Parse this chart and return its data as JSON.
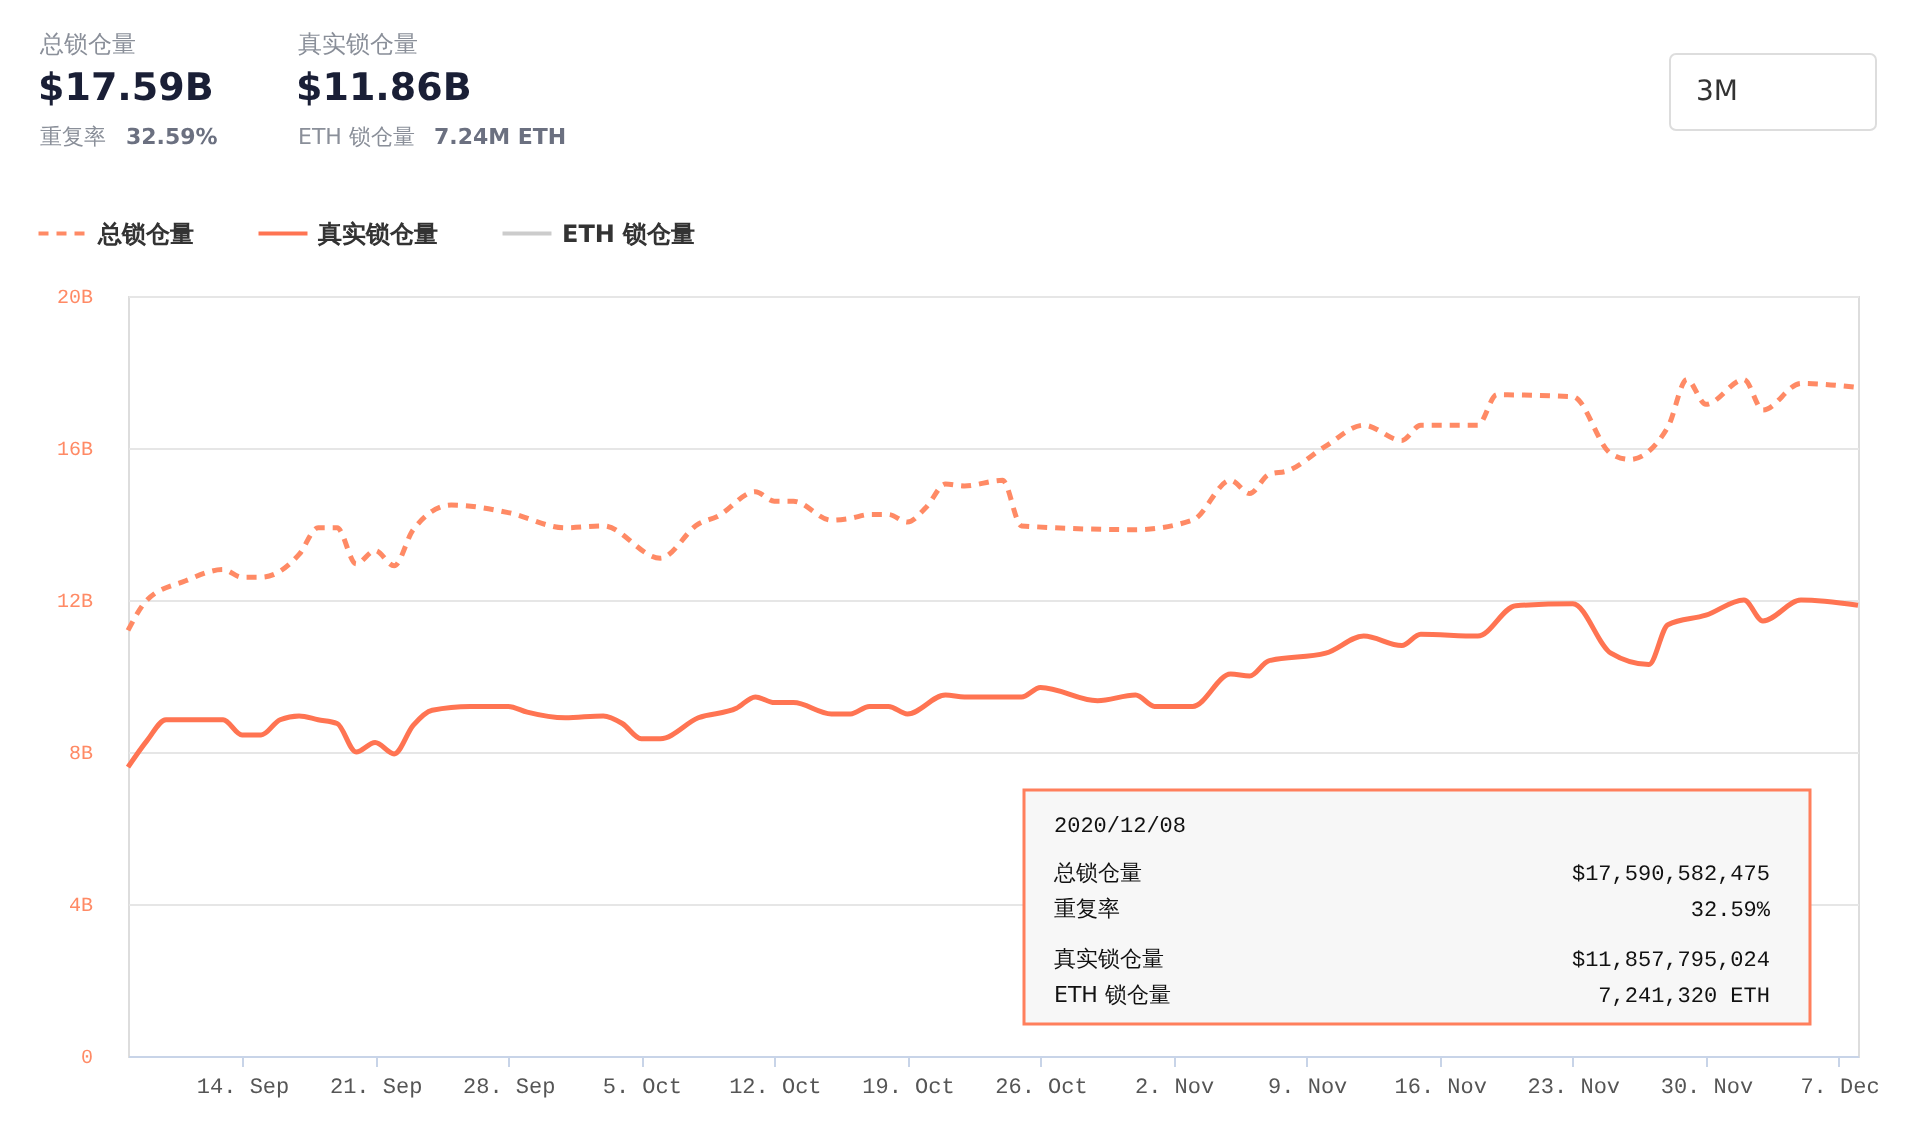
{
  "chart_data": {
    "type": "line",
    "annotations": [
      "总锁仓量",
      "$17.59B",
      "重复率",
      "32.59%",
      "真实锁仓量",
      "$11.86B",
      "ETH 锁仓量",
      "7.24M ETH",
      "3M",
      "2020/12/08",
      "总锁仓量",
      "$17,590,582,475",
      "重复率",
      "32.59%",
      "真实锁仓量",
      "$11,857,795,024",
      "ETH 锁仓量",
      "7,241,320 ETH"
    ],
    "series": [
      {
        "name": "总锁仓量",
        "color": "#ff8a65",
        "line_style": "dashed",
        "x": [
          "2020-09-08",
          "2020-09-09",
          "2020-09-11",
          "2020-09-13",
          "2020-09-14",
          "2020-09-15",
          "2020-09-17",
          "2020-09-18",
          "2020-09-19",
          "2020-09-20",
          "2020-09-21",
          "2020-09-22",
          "2020-09-23",
          "2020-09-25",
          "2020-09-28",
          "2020-10-01",
          "2020-10-03",
          "2020-10-06",
          "2020-10-08",
          "2020-10-09",
          "2020-10-11",
          "2020-10-12",
          "2020-10-13",
          "2020-10-15",
          "2020-10-16",
          "2020-10-17",
          "2020-10-18",
          "2020-10-19",
          "2020-10-20",
          "2020-10-21",
          "2020-10-22",
          "2020-10-24",
          "2020-10-25",
          "2020-10-31",
          "2020-11-03",
          "2020-11-05",
          "2020-11-06",
          "2020-11-07",
          "2020-11-08",
          "2020-11-10",
          "2020-11-12",
          "2020-11-14",
          "2020-11-15",
          "2020-11-18",
          "2020-11-19",
          "2020-11-23",
          "2020-11-25",
          "2020-11-26",
          "2020-11-28",
          "2020-11-29",
          "2020-11-30",
          "2020-12-02",
          "2020-12-03",
          "2020-12-05",
          "2020-12-08"
        ],
        "values": [
          11.2,
          12.0,
          12.5,
          12.8,
          12.6,
          12.6,
          13.2,
          13.9,
          13.9,
          12.95,
          13.3,
          12.9,
          13.85,
          14.5,
          14.3,
          13.9,
          13.95,
          13.1,
          14.0,
          14.2,
          14.85,
          14.6,
          14.6,
          14.1,
          14.15,
          14.25,
          14.25,
          14.05,
          14.45,
          15.05,
          15.0,
          15.15,
          13.95,
          13.85,
          14.1,
          15.15,
          14.8,
          15.3,
          15.4,
          16.05,
          16.6,
          16.2,
          16.6,
          16.6,
          17.4,
          17.35,
          15.85,
          15.7,
          16.55,
          17.8,
          17.15,
          17.8,
          17.0,
          17.7,
          17.59
        ]
      },
      {
        "name": "真实锁仓量",
        "color": "#ff7452",
        "line_style": "solid",
        "x": [
          "2020-09-08",
          "2020-09-09",
          "2020-09-10",
          "2020-09-13",
          "2020-09-14",
          "2020-09-15",
          "2020-09-16",
          "2020-09-17",
          "2020-09-18",
          "2020-09-19",
          "2020-09-20",
          "2020-09-21",
          "2020-09-22",
          "2020-09-23",
          "2020-09-24",
          "2020-09-26",
          "2020-09-28",
          "2020-09-29",
          "2020-10-01",
          "2020-10-03",
          "2020-10-04",
          "2020-10-05",
          "2020-10-06",
          "2020-10-08",
          "2020-10-10",
          "2020-10-11",
          "2020-10-12",
          "2020-10-13",
          "2020-10-15",
          "2020-10-16",
          "2020-10-17",
          "2020-10-18",
          "2020-10-19",
          "2020-10-21",
          "2020-10-22",
          "2020-10-25",
          "2020-10-26",
          "2020-10-29",
          "2020-10-31",
          "2020-11-01",
          "2020-11-03",
          "2020-11-05",
          "2020-11-06",
          "2020-11-07",
          "2020-11-10",
          "2020-11-12",
          "2020-11-14",
          "2020-11-15",
          "2020-11-18",
          "2020-11-20",
          "2020-11-23",
          "2020-11-25",
          "2020-11-27",
          "2020-11-28",
          "2020-11-30",
          "2020-12-02",
          "2020-12-03",
          "2020-12-05",
          "2020-12-08"
        ],
        "values": [
          7.6,
          8.3,
          8.85,
          8.85,
          8.45,
          8.45,
          8.85,
          8.95,
          8.85,
          8.75,
          8.0,
          8.25,
          7.95,
          8.7,
          9.1,
          9.2,
          9.2,
          9.05,
          8.9,
          8.95,
          8.75,
          8.35,
          8.35,
          8.9,
          9.15,
          9.45,
          9.3,
          9.3,
          9.0,
          9.0,
          9.2,
          9.2,
          9.0,
          9.5,
          9.45,
          9.45,
          9.7,
          9.35,
          9.5,
          9.2,
          9.2,
          10.05,
          10.0,
          10.4,
          10.6,
          11.05,
          10.8,
          11.1,
          11.05,
          11.85,
          11.9,
          10.6,
          10.3,
          11.35,
          11.6,
          12.0,
          11.45,
          12.0,
          11.86
        ]
      },
      {
        "name": "ETH 锁仓量",
        "color": "#cccccc",
        "line_style": "solid"
      }
    ],
    "xlim": [
      "2020-09-08",
      "2020-12-08"
    ],
    "xticks": [
      {
        "value": "2020-09-14",
        "label": "14. Sep"
      },
      {
        "value": "2020-09-21",
        "label": "21. Sep"
      },
      {
        "value": "2020-09-28",
        "label": "28. Sep"
      },
      {
        "value": "2020-10-05",
        "label": "5. Oct"
      },
      {
        "value": "2020-10-12",
        "label": "12. Oct"
      },
      {
        "value": "2020-10-19",
        "label": "19. Oct"
      },
      {
        "value": "2020-10-26",
        "label": "26. Oct"
      },
      {
        "value": "2020-11-02",
        "label": "2. Nov"
      },
      {
        "value": "2020-11-09",
        "label": "9. Nov"
      },
      {
        "value": "2020-11-16",
        "label": "16. Nov"
      },
      {
        "value": "2020-11-23",
        "label": "23. Nov"
      },
      {
        "value": "2020-11-30",
        "label": "30. Nov"
      },
      {
        "value": "2020-12-07",
        "label": "7. Dec"
      }
    ],
    "ylim": [
      0,
      20
    ],
    "yticks": [
      0,
      {
        "value": 4,
        "label": "4B"
      },
      {
        "value": 8,
        "label": "8B"
      },
      {
        "value": 12,
        "label": "12B"
      },
      {
        "value": 16,
        "label": "16B"
      },
      {
        "value": 20,
        "label": "20B"
      }
    ],
    "grid": "y",
    "legend": "top left"
  }
}
